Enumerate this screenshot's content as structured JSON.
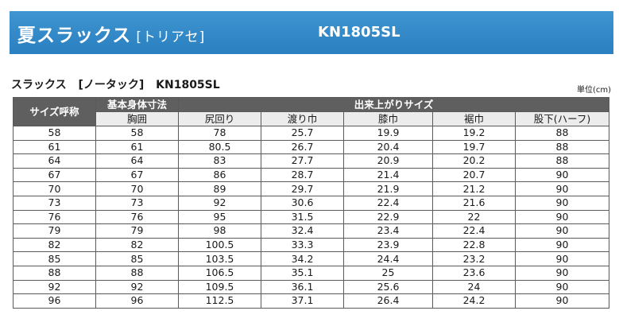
{
  "banner": {
    "title": "夏スラックス",
    "title_bracket": "[トリアセ]",
    "code": "KN1805SL"
  },
  "subtitle": {
    "name": "スラックス",
    "type": "[ノータック]",
    "code": "KN1805SL"
  },
  "unit": "単位(cm)",
  "table": {
    "col_size": "サイズ呼称",
    "group_body": "基本身体寸法",
    "group_finished": "出来上がりサイズ",
    "headers": [
      "胸囲",
      "尻回り",
      "渡り巾",
      "膝巾",
      "裾巾",
      "股下(ハーフ)"
    ],
    "rows": [
      [
        "58",
        "58",
        "78",
        "25.7",
        "19.9",
        "19.2",
        "88"
      ],
      [
        "61",
        "61",
        "80.5",
        "26.7",
        "20.4",
        "19.7",
        "88"
      ],
      [
        "64",
        "64",
        "83",
        "27.7",
        "20.9",
        "20.2",
        "88"
      ],
      [
        "67",
        "67",
        "86",
        "28.7",
        "21.4",
        "20.7",
        "90"
      ],
      [
        "70",
        "70",
        "89",
        "29.7",
        "21.9",
        "21.2",
        "90"
      ],
      [
        "73",
        "73",
        "92",
        "30.6",
        "22.4",
        "21.6",
        "90"
      ],
      [
        "76",
        "76",
        "95",
        "31.5",
        "22.9",
        "22",
        "90"
      ],
      [
        "79",
        "79",
        "98",
        "32.4",
        "23.4",
        "22.4",
        "90"
      ],
      [
        "82",
        "82",
        "100.5",
        "33.3",
        "23.9",
        "22.8",
        "90"
      ],
      [
        "85",
        "85",
        "103.5",
        "34.2",
        "24.4",
        "23.2",
        "90"
      ],
      [
        "88",
        "88",
        "106.5",
        "35.1",
        "25",
        "23.6",
        "90"
      ],
      [
        "92",
        "92",
        "109.5",
        "36.1",
        "25.6",
        "24",
        "90"
      ],
      [
        "96",
        "96",
        "112.5",
        "37.1",
        "26.4",
        "24.2",
        "90"
      ]
    ]
  }
}
